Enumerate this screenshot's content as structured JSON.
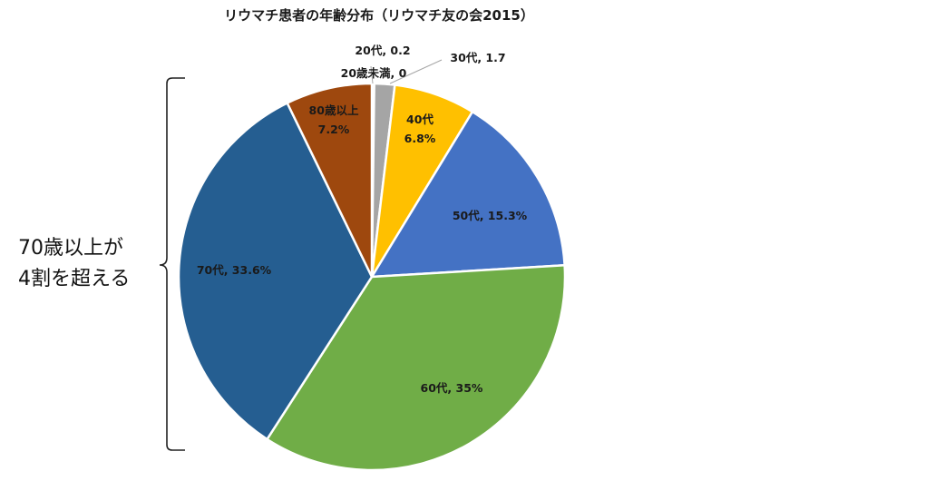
{
  "chart_data": {
    "type": "pie",
    "title": "リウマチ患者の年齢分布（リウマチ友の会2015）",
    "unit": "%",
    "slices": [
      {
        "label": "20歳未満",
        "value": 0,
        "text": "20歳未満, 0",
        "color": "#5b9bd5"
      },
      {
        "label": "20代",
        "value": 0.2,
        "text": "20代, 0.2",
        "color": "#d9d9d9"
      },
      {
        "label": "30代",
        "value": 1.7,
        "text": "30代, 1.7",
        "color": "#a5a5a5"
      },
      {
        "label": "40代",
        "value": 6.8,
        "text": "40代\n6.8%",
        "color": "#ffc000"
      },
      {
        "label": "50代",
        "value": 15.3,
        "text": "50代, 15.3%",
        "color": "#4472c4"
      },
      {
        "label": "60代",
        "value": 35,
        "text": "60代, 35%",
        "color": "#70ad47"
      },
      {
        "label": "70代",
        "value": 33.6,
        "text": "70代, 33.6%",
        "color": "#255e91"
      },
      {
        "label": "80歳以上",
        "value": 7.2,
        "text": "80歳以上\n7.2%",
        "color": "#9e480e"
      }
    ]
  },
  "annotation": {
    "line1": "70歳以上が",
    "line2": "4割を超える"
  }
}
